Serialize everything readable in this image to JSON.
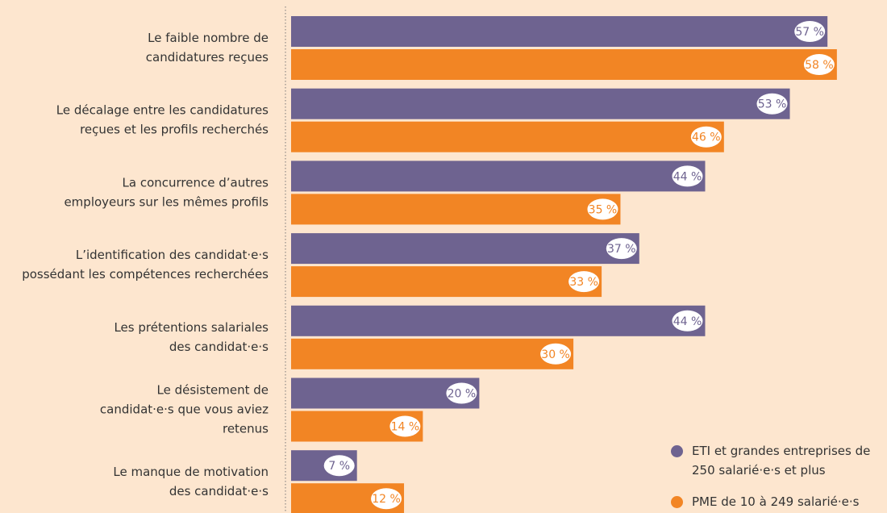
{
  "chart_data": {
    "type": "bar",
    "orientation": "horizontal",
    "categories": [
      [
        "Le faible nombre de",
        "candidatures reçues"
      ],
      [
        "Le décalage entre les candidatures",
        "reçues et les profils recherchés"
      ],
      [
        "La concurrence d’autres",
        "employeurs sur les mêmes profils"
      ],
      [
        "L’identification des candidat·e·s",
        "possédant les compétences recherchées"
      ],
      [
        "Les prétentions salariales",
        "des candidat·e·s"
      ],
      [
        "Le désistement de",
        "candidat·e·s que vous aviez",
        "retenus"
      ],
      [
        "Le manque de motivation",
        "des candidat·e·s"
      ]
    ],
    "series": [
      {
        "name": "ETI et grandes entreprises de 250 salarié·e·s et plus",
        "color": "#6e6390",
        "values": [
          57,
          53,
          44,
          37,
          44,
          20,
          7
        ],
        "value_labels": [
          "57 %",
          "53 %",
          "44 %",
          "37 %",
          "44 %",
          "20 %",
          "7 %"
        ]
      },
      {
        "name": "PME de 10 à 249 salarié·e·s",
        "color": "#f28524",
        "values": [
          58,
          46,
          35,
          33,
          30,
          14,
          12
        ],
        "value_labels": [
          "58 %",
          "46 %",
          "35 %",
          "33 %",
          "30 %",
          "14 %",
          "12 %"
        ]
      }
    ]
  }
}
